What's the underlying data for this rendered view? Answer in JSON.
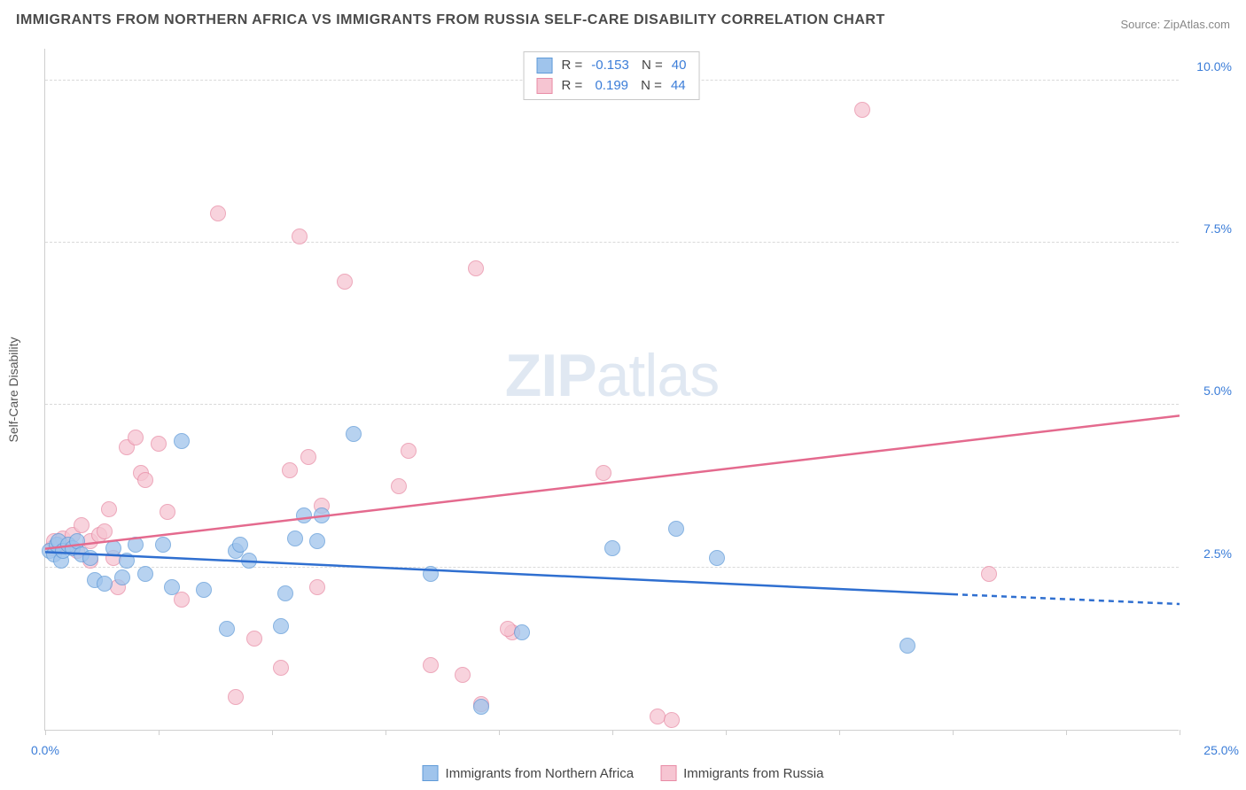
{
  "title": "IMMIGRANTS FROM NORTHERN AFRICA VS IMMIGRANTS FROM RUSSIA SELF-CARE DISABILITY CORRELATION CHART",
  "source": "Source: ZipAtlas.com",
  "watermark": {
    "bold": "ZIP",
    "light": "atlas"
  },
  "ylabel": "Self-Care Disability",
  "chart": {
    "type": "scatter",
    "xlim": [
      0,
      25
    ],
    "ylim": [
      0,
      10.5
    ],
    "xtick_positions": [
      0,
      2.5,
      5,
      7.5,
      10,
      12.5,
      15,
      17.5,
      20,
      22.5,
      25
    ],
    "xtick_label_left": "0.0%",
    "xtick_label_right": "25.0%",
    "ytick_positions": [
      2.5,
      5.0,
      7.5,
      10.0
    ],
    "ytick_labels": [
      "2.5%",
      "5.0%",
      "7.5%",
      "10.0%"
    ],
    "grid_color": "#d9d9d9",
    "background_color": "#ffffff",
    "point_radius": 9
  },
  "series": {
    "blue": {
      "label": "Immigrants from Northern Africa",
      "fill": "#9fc4ec",
      "stroke": "#5f9ad8",
      "R": "-0.153",
      "N": "40",
      "trend": {
        "x1": 0,
        "y1": 2.75,
        "x2": 20,
        "y2": 2.1,
        "x2_dash": 25,
        "y2_dash": 1.95,
        "color": "#2f6fd0",
        "width": 2
      },
      "points": [
        [
          0.1,
          2.75
        ],
        [
          0.2,
          2.7
        ],
        [
          0.25,
          2.85
        ],
        [
          0.3,
          2.9
        ],
        [
          0.35,
          2.6
        ],
        [
          0.4,
          2.75
        ],
        [
          0.5,
          2.85
        ],
        [
          0.6,
          2.8
        ],
        [
          0.7,
          2.9
        ],
        [
          0.8,
          2.7
        ],
        [
          1.0,
          2.65
        ],
        [
          1.1,
          2.3
        ],
        [
          1.3,
          2.25
        ],
        [
          1.5,
          2.8
        ],
        [
          1.7,
          2.35
        ],
        [
          1.8,
          2.6
        ],
        [
          2.0,
          2.85
        ],
        [
          2.2,
          2.4
        ],
        [
          2.6,
          2.85
        ],
        [
          2.8,
          2.2
        ],
        [
          3.0,
          4.45
        ],
        [
          3.5,
          2.15
        ],
        [
          4.0,
          1.55
        ],
        [
          4.2,
          2.75
        ],
        [
          4.3,
          2.85
        ],
        [
          4.5,
          2.6
        ],
        [
          5.2,
          1.6
        ],
        [
          5.3,
          2.1
        ],
        [
          5.5,
          2.95
        ],
        [
          5.7,
          3.3
        ],
        [
          6.0,
          2.9
        ],
        [
          6.1,
          3.3
        ],
        [
          6.8,
          4.55
        ],
        [
          8.5,
          2.4
        ],
        [
          9.6,
          0.35
        ],
        [
          10.5,
          1.5
        ],
        [
          12.5,
          2.8
        ],
        [
          13.9,
          3.1
        ],
        [
          14.8,
          2.65
        ],
        [
          19.0,
          1.3
        ]
      ]
    },
    "pink": {
      "label": "Immigrants from Russia",
      "fill": "#f6c5d2",
      "stroke": "#e88ba5",
      "R": "0.199",
      "N": "44",
      "trend": {
        "x1": 0,
        "y1": 2.8,
        "x2": 25,
        "y2": 4.85,
        "color": "#e46a8e",
        "width": 2
      },
      "points": [
        [
          0.15,
          2.8
        ],
        [
          0.2,
          2.9
        ],
        [
          0.3,
          2.85
        ],
        [
          0.4,
          2.95
        ],
        [
          0.6,
          3.0
        ],
        [
          0.7,
          2.75
        ],
        [
          0.8,
          3.15
        ],
        [
          1.0,
          2.9
        ],
        [
          1.0,
          2.6
        ],
        [
          1.2,
          3.0
        ],
        [
          1.3,
          3.05
        ],
        [
          1.4,
          3.4
        ],
        [
          1.5,
          2.65
        ],
        [
          1.6,
          2.2
        ],
        [
          1.8,
          4.35
        ],
        [
          2.0,
          4.5
        ],
        [
          2.1,
          3.95
        ],
        [
          2.2,
          3.85
        ],
        [
          2.5,
          4.4
        ],
        [
          2.7,
          3.35
        ],
        [
          3.0,
          2.0
        ],
        [
          3.8,
          7.95
        ],
        [
          4.2,
          0.5
        ],
        [
          4.6,
          1.4
        ],
        [
          5.2,
          0.95
        ],
        [
          5.4,
          4.0
        ],
        [
          5.6,
          7.6
        ],
        [
          5.8,
          4.2
        ],
        [
          6.0,
          2.2
        ],
        [
          6.1,
          3.45
        ],
        [
          6.6,
          6.9
        ],
        [
          7.8,
          3.75
        ],
        [
          8.0,
          4.3
        ],
        [
          8.5,
          1.0
        ],
        [
          9.2,
          0.85
        ],
        [
          9.5,
          7.1
        ],
        [
          9.6,
          0.4
        ],
        [
          10.3,
          1.5
        ],
        [
          12.3,
          3.95
        ],
        [
          13.5,
          0.2
        ],
        [
          18.0,
          9.55
        ],
        [
          20.8,
          2.4
        ],
        [
          13.8,
          0.15
        ],
        [
          10.2,
          1.55
        ]
      ]
    }
  }
}
